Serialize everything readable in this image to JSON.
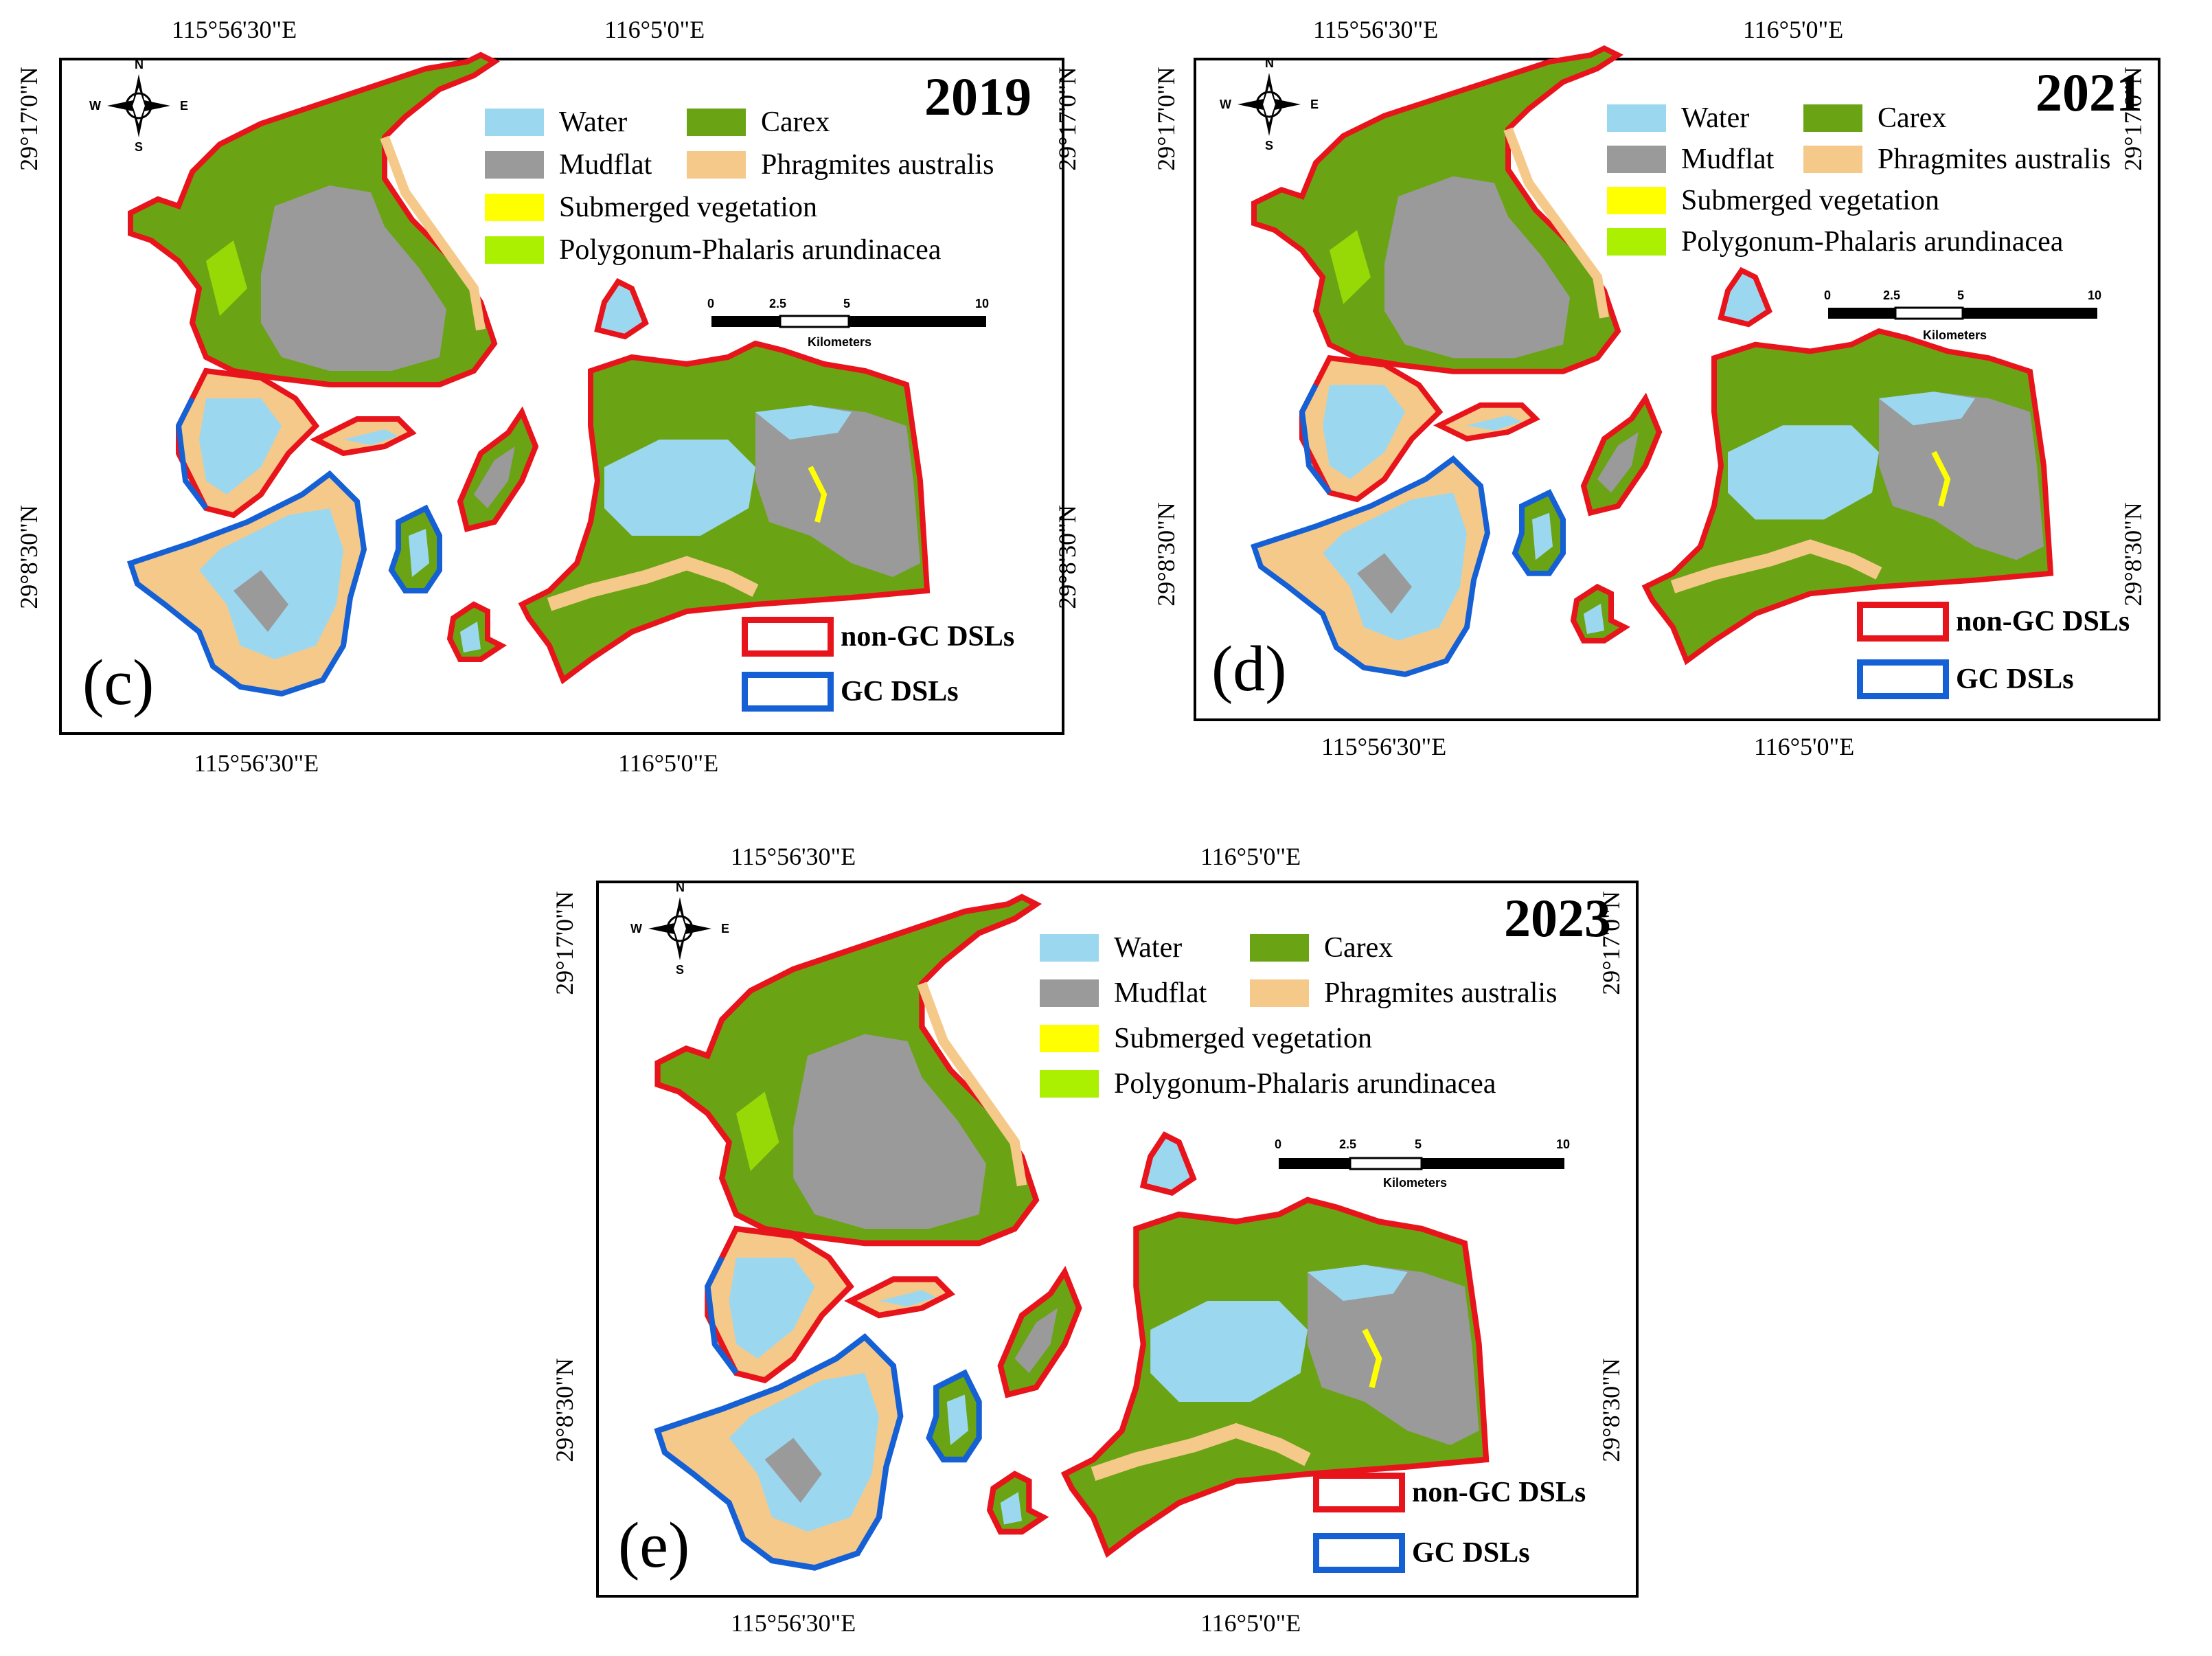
{
  "longitude_labels": {
    "west": "115°56'30\"E",
    "east": "116°5'0\"E"
  },
  "latitude_labels": {
    "north": "29°17'0\"N",
    "south": "29°8'30\"N"
  },
  "legend": {
    "water": "Water",
    "carex": "Carex",
    "mudflat": "Mudflat",
    "phragmites": "Phragmites australis",
    "submerged": "Submerged vegetation",
    "polygonum": "Polygonum-Phalaris arundinacea",
    "non_gc": "non-GC DSLs",
    "gc": "GC DSLs"
  },
  "colors": {
    "water": "#9bd8f0",
    "carex": "#6aa414",
    "mudflat": "#9a9a9a",
    "phragmites": "#f5c98a",
    "submerged": "#ffff00",
    "polygonum": "#aaf000",
    "non_gc_outline": "#e8141c",
    "gc_outline": "#1560d4"
  },
  "scale_bar": {
    "ticks": [
      "0",
      "2.5",
      "5",
      "10"
    ],
    "unit": "Kilometers"
  },
  "compass": {
    "n": "N",
    "s": "S",
    "e": "E",
    "w": "W"
  },
  "panels": [
    {
      "id": "c",
      "year": "2019",
      "label": "(c)"
    },
    {
      "id": "d",
      "year": "2021",
      "label": "(d)"
    },
    {
      "id": "e",
      "year": "2023",
      "label": "(e)"
    }
  ]
}
